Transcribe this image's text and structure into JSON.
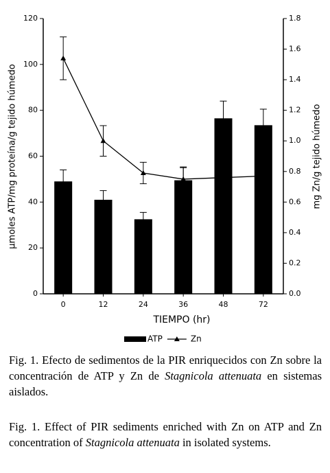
{
  "chart_data": {
    "type": "bar-line",
    "xlabel": "TIEMPO (hr)",
    "ylabel": "µmoles ATP/mg proteína/g tejido húmedo",
    "y2label": "mg Zn/g tejido húmedo",
    "categories": [
      "0",
      "12",
      "24",
      "36",
      "48",
      "72"
    ],
    "series": [
      {
        "name": "ATP",
        "type": "bar",
        "color": "#000000",
        "values": [
          49,
          41,
          32.5,
          49.5,
          76.5,
          73.5
        ],
        "errors": [
          5,
          4,
          3,
          5.5,
          7.5,
          7
        ]
      },
      {
        "name": "Zn",
        "type": "line",
        "axis": "y2",
        "color": "#000000",
        "values": [
          1.54,
          1.0,
          0.79,
          0.75,
          0.76,
          0.77
        ],
        "errors": [
          0.14,
          0.1,
          0.07,
          0.08,
          0.07,
          0.07
        ]
      }
    ],
    "ylim": [
      0,
      120
    ],
    "yticks": [
      0,
      20,
      40,
      60,
      80,
      100,
      120
    ],
    "y2lim": [
      0,
      1.8
    ],
    "y2ticks": [
      {
        "value": 0,
        "label": "0.0"
      },
      0.2,
      0.4,
      0.6,
      0.8,
      {
        "value": 1,
        "label": "1.0"
      },
      1.2,
      1.4,
      1.6,
      1.8
    ],
    "grid": false,
    "legend": "bottom"
  },
  "caption_es": [
    "Fig. 1. Efecto de sedimentos de la PIR enriquecidos con Zn sobre la concentración de ATP y Zn de ",
    "Stagnicola attenuata",
    " en sistemas aislados."
  ],
  "caption_en": [
    "Fig. 1. Effect of PIR sediments enriched with Zn on ATP and Zn concentration of ",
    "Stagnicola attenuata",
    " in isolated systems."
  ]
}
